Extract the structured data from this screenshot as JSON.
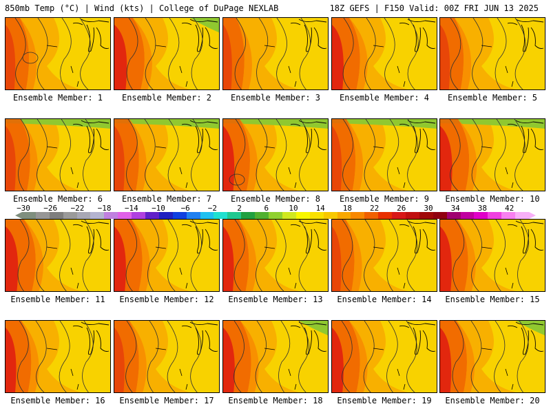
{
  "header": {
    "left": "850mb Temp (°C) | Wind (kts) | College of DuPage NEXLAB",
    "right": "18Z GEFS | F150 Valid: 00Z FRI JUN 13 2025"
  },
  "colorbar": {
    "tick_labels": [
      "−30",
      "−26",
      "−22",
      "−18",
      "−14",
      "−10",
      "−6",
      "−2",
      "2",
      "6",
      "10",
      "14",
      "18",
      "22",
      "26",
      "30",
      "34",
      "38",
      "42"
    ],
    "colors": [
      "#7f8f7f",
      "#969696",
      "#7e7e7e",
      "#9a9a9a",
      "#a8a8b4",
      "#b4b4d0",
      "#c080e0",
      "#e060e8",
      "#b040e0",
      "#6020c8",
      "#2020c0",
      "#1040e0",
      "#2080f0",
      "#20c0f0",
      "#20e0d0",
      "#20c890",
      "#20a040",
      "#50b030",
      "#90d030",
      "#d0e820",
      "#f8f800",
      "#f8e000",
      "#f8c800",
      "#f8a800",
      "#f88800",
      "#f06000",
      "#e83000",
      "#d81818",
      "#c01010",
      "#a00808",
      "#900010",
      "#a00070",
      "#c000a0",
      "#e000c8",
      "#f040e0",
      "#f880f0",
      "#f8b0f8"
    ]
  },
  "panels": [
    {
      "label": "Ensemble Member: 1",
      "hot_level": 0.55
    },
    {
      "label": "Ensemble Member: 2",
      "hot_level": 0.85
    },
    {
      "label": "Ensemble Member: 3",
      "hot_level": 0.45
    },
    {
      "label": "Ensemble Member: 4",
      "hot_level": 0.75
    },
    {
      "label": "Ensemble Member: 5",
      "hot_level": 0.55
    },
    {
      "label": "Ensemble Member: 6",
      "hot_level": 0.6
    },
    {
      "label": "Ensemble Member: 7",
      "hot_level": 0.6
    },
    {
      "label": "Ensemble Member: 8",
      "hot_level": 0.7
    },
    {
      "label": "Ensemble Member: 9",
      "hot_level": 0.55
    },
    {
      "label": "Ensemble Member: 10",
      "hot_level": 0.8
    },
    {
      "label": "Ensemble Member: 11",
      "hot_level": 0.85
    },
    {
      "label": "Ensemble Member: 12",
      "hot_level": 0.75
    },
    {
      "label": "Ensemble Member: 13",
      "hot_level": 0.65
    },
    {
      "label": "Ensemble Member: 14",
      "hot_level": 0.5
    },
    {
      "label": "Ensemble Member: 15",
      "hot_level": 0.75
    },
    {
      "label": "Ensemble Member: 16",
      "hot_level": 0.65
    },
    {
      "label": "Ensemble Member: 17",
      "hot_level": 0.6
    },
    {
      "label": "Ensemble Member: 18",
      "hot_level": 0.75
    },
    {
      "label": "Ensemble Member: 19",
      "hot_level": 0.75
    },
    {
      "label": "Ensemble Member: 20",
      "hot_level": 0.7
    }
  ]
}
